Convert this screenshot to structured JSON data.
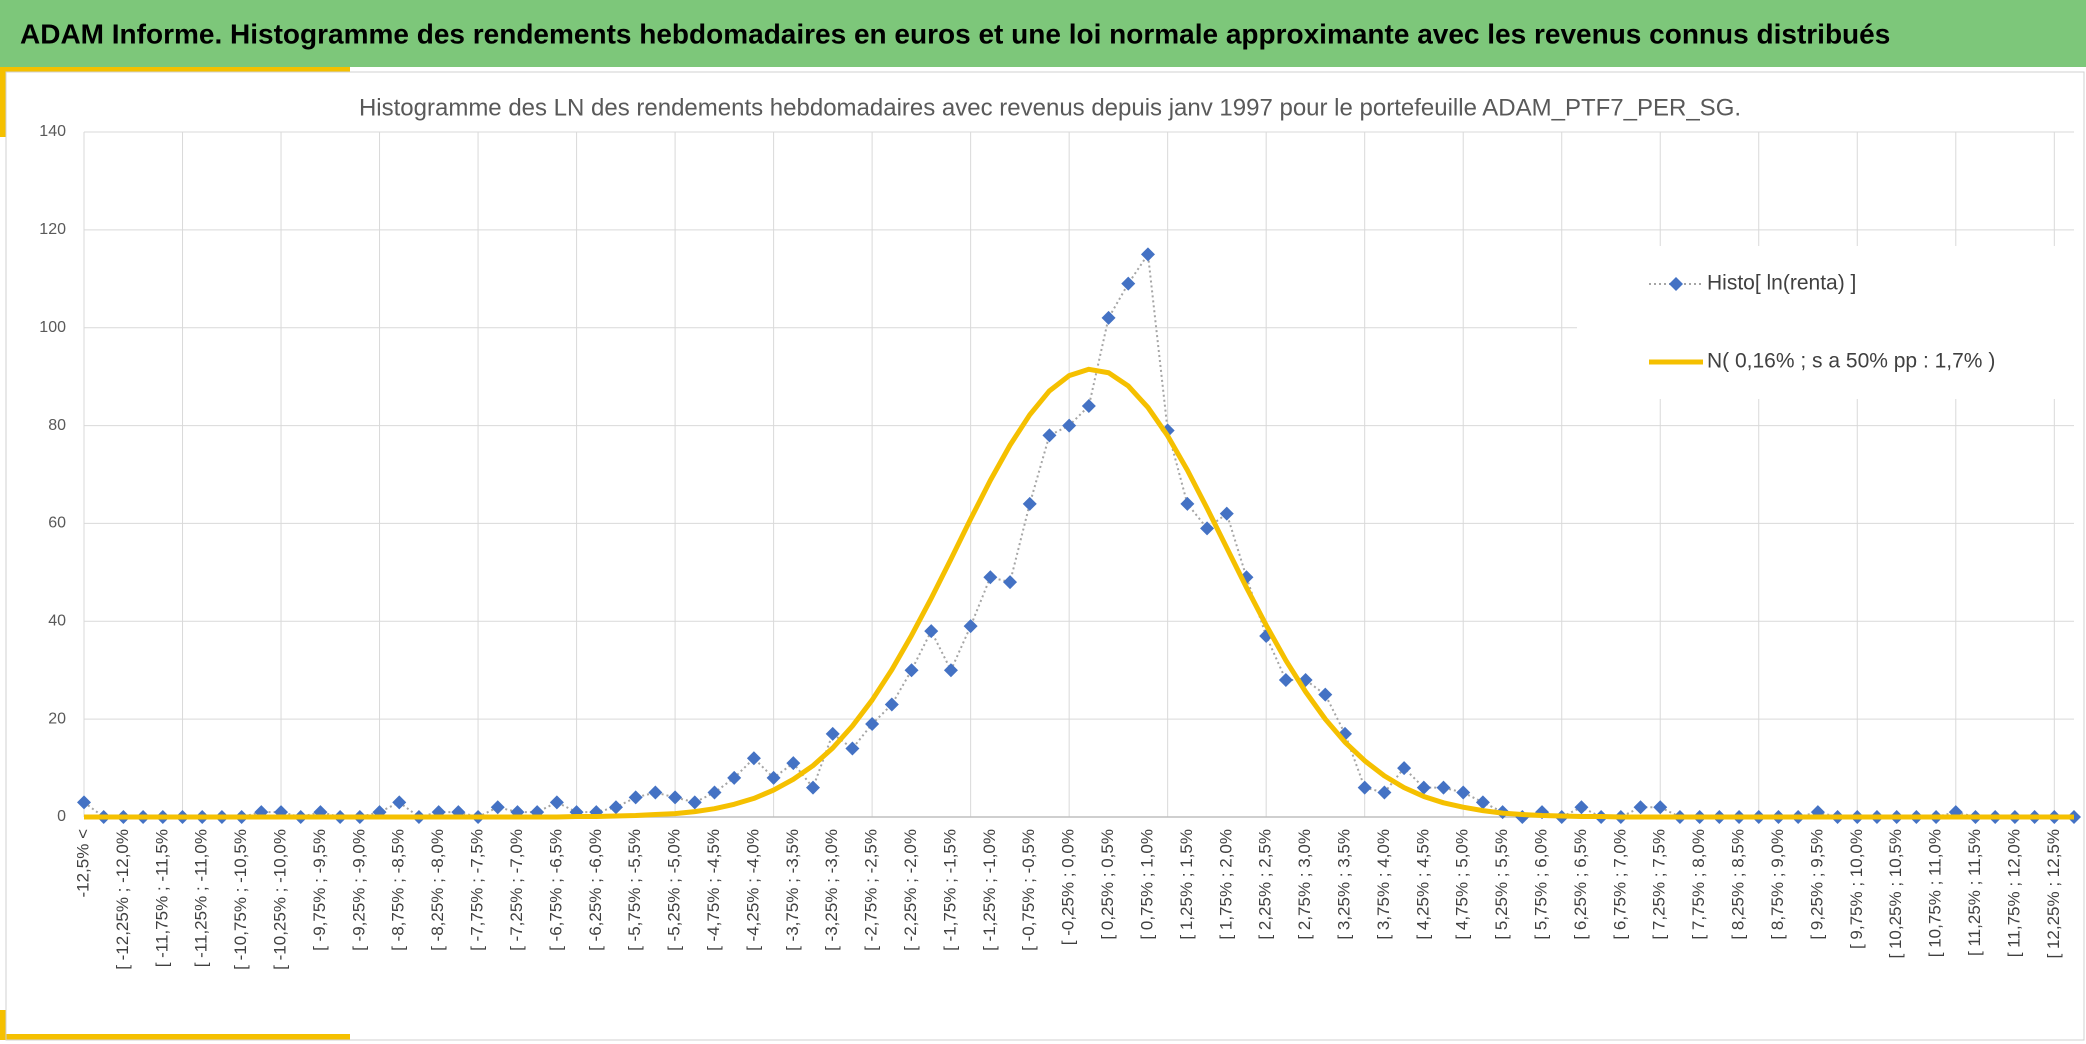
{
  "header": {
    "title": "ADAM Informe. Histogramme des rendements hebdomadaires en euros et une loi normale approximante avec les revenus connus distribués"
  },
  "chart_data": {
    "type": "line",
    "title": "Histogramme des LN des rendements hebdomadaires avec revenus depuis janv 1997 pour le portefeuille ADAM_PTF7_PER_SG.",
    "categories": [
      "-12,5% <",
      null,
      "[ -12,25% ; -12,0%",
      null,
      "[ -11,75% ; -11,5%",
      null,
      "[ -11,25% ; -11,0%",
      null,
      "[ -10,75% ; -10,5%",
      null,
      "[ -10,25% ; -10,0%",
      null,
      "[ -9,75% ; -9,5%",
      null,
      "[ -9,25% ; -9,0%",
      null,
      "[ -8,75% ; -8,5%",
      null,
      "[ -8,25% ; -8,0%",
      null,
      "[ -7,75% ; -7,5%",
      null,
      "[ -7,25% ; -7,0%",
      null,
      "[ -6,75% ; -6,5%",
      null,
      "[ -6,25% ; -6,0%",
      null,
      "[ -5,75% ; -5,5%",
      null,
      "[ -5,25% ; -5,0%",
      null,
      "[ -4,75% ; -4,5%",
      null,
      "[ -4,25% ; -4,0%",
      null,
      "[ -3,75% ; -3,5%",
      null,
      "[ -3,25% ; -3,0%",
      null,
      "[ -2,75% ; -2,5%",
      null,
      "[ -2,25% ; -2,0%",
      null,
      "[ -1,75% ; -1,5%",
      null,
      "[ -1,25% ; -1,0%",
      null,
      "[ -0,75% ; -0,5%",
      null,
      "[ -0,25% ; 0,0%",
      null,
      "[ 0,25% ; 0,5%",
      null,
      "[ 0,75% ; 1,0%",
      null,
      "[ 1,25% ; 1,5%",
      null,
      "[ 1,75% ; 2,0%",
      null,
      "[ 2,25% ; 2,5%",
      null,
      "[ 2,75% ; 3,0%",
      null,
      "[ 3,25% ; 3,5%",
      null,
      "[ 3,75% ; 4,0%",
      null,
      "[ 4,25% ; 4,5%",
      null,
      "[ 4,75% ; 5,0%",
      null,
      "[ 5,25% ; 5,5%",
      null,
      "[ 5,75% ; 6,0%",
      null,
      "[ 6,25% ; 6,5%",
      null,
      "[ 6,75% ; 7,0%",
      null,
      "[ 7,25% ; 7,5%",
      null,
      "[ 7,75% ; 8,0%",
      null,
      "[ 8,25% ; 8,5%",
      null,
      "[ 8,75% ; 9,0%",
      null,
      "[ 9,25% ; 9,5%",
      null,
      "[ 9,75% ; 10,0%",
      null,
      "[ 10,25% ; 10,5%",
      null,
      "[ 10,75% ; 11,0%",
      null,
      "[ 11,25% ; 11,5%",
      null,
      "[ 11,75% ; 12,0%",
      null,
      "[ 12,25% ; 12,5%",
      null
    ],
    "series": [
      {
        "name": "Histo[ ln(renta) ]",
        "color": "#4472c4",
        "values": [
          3,
          0,
          0,
          0,
          0,
          0,
          0,
          0,
          0,
          1,
          1,
          0,
          1,
          0,
          0,
          1,
          3,
          0,
          1,
          1,
          0,
          2,
          1,
          1,
          3,
          1,
          1,
          2,
          4,
          5,
          4,
          3,
          5,
          8,
          12,
          8,
          11,
          6,
          17,
          14,
          19,
          23,
          30,
          38,
          30,
          39,
          49,
          48,
          64,
          78,
          80,
          84,
          102,
          109,
          115,
          79,
          64,
          59,
          62,
          49,
          37,
          28,
          28,
          25,
          17,
          6,
          5,
          10,
          6,
          6,
          5,
          3,
          1,
          0,
          1,
          0,
          2,
          0,
          0,
          2,
          2,
          0,
          0,
          0,
          0,
          0,
          0,
          0,
          1,
          0,
          0,
          0,
          0,
          0,
          0,
          1,
          0,
          0,
          0,
          0,
          0,
          0
        ]
      },
      {
        "name": "N( 0,16% ; s a 50% pp : 1,7% )",
        "color": "#f5c000",
        "values": [
          0,
          0,
          0,
          0,
          0,
          0,
          0,
          0,
          0,
          0,
          0,
          0,
          0,
          0,
          0,
          0,
          0,
          0,
          0,
          0,
          0,
          0,
          0,
          0,
          0,
          0.1,
          0.1,
          0.2,
          0.3,
          0.5,
          0.7,
          1.1,
          1.7,
          2.6,
          3.8,
          5.5,
          7.7,
          10.5,
          14.1,
          18.6,
          23.9,
          30.1,
          37.1,
          44.7,
          52.7,
          60.9,
          68.8,
          76.0,
          82.2,
          87.1,
          90.2,
          91.5,
          90.8,
          88.1,
          83.7,
          77.9,
          70.9,
          63.1,
          55.0,
          46.9,
          39.2,
          32.0,
          25.6,
          20.0,
          15.3,
          11.5,
          8.4,
          6.0,
          4.2,
          2.9,
          2.0,
          1.3,
          0.8,
          0.5,
          0.3,
          0.2,
          0.1,
          0.1,
          0,
          0,
          0,
          0,
          0,
          0,
          0,
          0,
          0,
          0,
          0,
          0,
          0,
          0,
          0,
          0,
          0,
          0,
          0,
          0,
          0,
          0,
          0,
          0
        ]
      }
    ],
    "ylim": [
      0,
      140
    ],
    "yticks": [
      0,
      20,
      40,
      60,
      80,
      100,
      120,
      140
    ],
    "grid": true,
    "legend": "upper right"
  }
}
